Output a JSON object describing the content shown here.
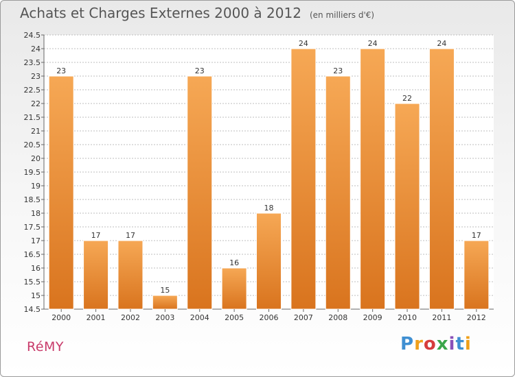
{
  "header": {
    "title": "Achats et Charges Externes 2000 à 2012",
    "unit": "(en milliers d'€)"
  },
  "footer": {
    "commune": "RéMY",
    "brand": "Proxiti",
    "brand_letters": [
      {
        "ch": "P",
        "color": "#3f8fd2"
      },
      {
        "ch": "r",
        "color": "#f0a01a"
      },
      {
        "ch": "o",
        "color": "#d63c3c"
      },
      {
        "ch": "x",
        "color": "#3aa64a"
      },
      {
        "ch": "i",
        "color": "#8a50b8"
      },
      {
        "ch": "t",
        "color": "#3f8fd2"
      },
      {
        "ch": "i",
        "color": "#f0a01a"
      }
    ]
  },
  "colors": {
    "bar_light": "#f6a855",
    "bar_dark": "#d9741e",
    "grid": "#bdbdbd",
    "axis_text": "#333333",
    "commune": "#c83a6a"
  },
  "chart_data": {
    "type": "bar",
    "title": "Achats et Charges Externes 2000 à 2012",
    "subtitle": "(en milliers d'€)",
    "categories": [
      "2000",
      "2001",
      "2002",
      "2003",
      "2004",
      "2005",
      "2006",
      "2007",
      "2008",
      "2009",
      "2010",
      "2011",
      "2012"
    ],
    "values": [
      23,
      17,
      17,
      15,
      23,
      16,
      18,
      24,
      23,
      24,
      22,
      24,
      17
    ],
    "data_labels": [
      "23",
      "17",
      "17",
      "15",
      "23",
      "16",
      "18",
      "24",
      "23",
      "24",
      "22",
      "24",
      "17"
    ],
    "ylim": [
      14.5,
      24.5
    ],
    "yticks": [
      "14.5",
      "15",
      "15.5",
      "16",
      "16.5",
      "17",
      "17.5",
      "18",
      "18.5",
      "19",
      "19.5",
      "20",
      "20.5",
      "21",
      "21.5",
      "22",
      "22.5",
      "23",
      "23.5",
      "24",
      "24.5"
    ],
    "xlabel": "",
    "ylabel": "",
    "grid": true,
    "legend": "none"
  }
}
